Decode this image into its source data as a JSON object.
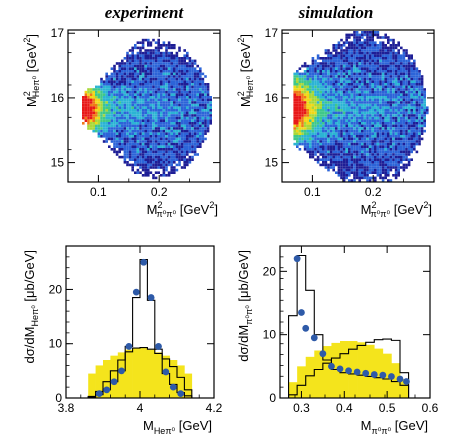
{
  "figure": {
    "titles": {
      "experiment": "experiment",
      "simulation": "simulation"
    }
  },
  "chart_data": [
    {
      "id": "tl",
      "type": "heatmap",
      "title": "experiment",
      "xlabel": {
        "main": "M",
        "sup": "2",
        "sub": "π⁰π⁰",
        "unit": " [GeV",
        "unit_sup": "2",
        "unit_close": "]"
      },
      "ylabel": {
        "main": "M",
        "sup": "2",
        "sub": "Heπ⁰",
        "unit": " [GeV",
        "unit_sup": "2",
        "unit_close": "]"
      },
      "xlim": [
        0.05,
        0.3
      ],
      "ylim": [
        14.7,
        17.05
      ],
      "xticks": [
        0.1,
        0.2
      ],
      "yticks": [
        15,
        16,
        17
      ],
      "shape": {
        "tip_x": 0.07,
        "center_y": 15.85,
        "right_x": 0.285,
        "half_width_y": [
          0.18,
          1.05
        ],
        "peak_width": 0.03
      },
      "colors": [
        "#1e1e96",
        "#2c64d8",
        "#2cb4d4",
        "#40c88a",
        "#a8d838",
        "#f0d818",
        "#f07818",
        "#e81818"
      ]
    },
    {
      "id": "tr",
      "type": "heatmap",
      "title": "simulation",
      "xlabel": {
        "main": "M",
        "sup": "2",
        "sub": "π⁰π⁰",
        "unit": " [GeV",
        "unit_sup": "2",
        "unit_close": "]"
      },
      "ylabel": {
        "main": "M",
        "sup": "2",
        "sub": "Heπ⁰",
        "unit": " [GeV",
        "unit_sup": "2",
        "unit_close": "]"
      },
      "xlim": [
        0.05,
        0.3
      ],
      "ylim": [
        14.7,
        17.05
      ],
      "xticks": [
        0.1,
        0.2
      ],
      "yticks": [
        15,
        16,
        17
      ],
      "shape": {
        "tip_x": 0.065,
        "center_y": 15.85,
        "right_x": 0.287,
        "half_width_y": [
          0.55,
          1.2
        ],
        "peak_width": 0.035
      },
      "colors": [
        "#1e1e96",
        "#2c64d8",
        "#2cb4d4",
        "#40c88a",
        "#a8d838",
        "#f0d818",
        "#f07818",
        "#e81818"
      ]
    },
    {
      "id": "bl",
      "type": "histogram",
      "xlabel": {
        "main": "M",
        "sub": "Heπ⁰",
        "unit": " [GeV]"
      },
      "ylabel": {
        "main": "dσ/dM",
        "sub": "Heπ⁰",
        "unit": " [μb/GeV]"
      },
      "xlim": [
        3.8,
        4.2
      ],
      "ylim": [
        0,
        28
      ],
      "xticks": [
        3.8,
        4,
        4.2
      ],
      "yticks": [
        0,
        10,
        20
      ],
      "edges": [
        3.86,
        3.88,
        3.9,
        3.92,
        3.94,
        3.96,
        3.98,
        4.0,
        4.02,
        4.04,
        4.06,
        4.08,
        4.1,
        4.12,
        4.14
      ],
      "band_yellow": [
        4.5,
        6.0,
        7.0,
        7.8,
        8.4,
        8.9,
        9.2,
        9.2,
        8.9,
        8.4,
        7.8,
        7.0,
        6.0,
        4.5
      ],
      "hist_outer": [
        0.3,
        1.2,
        3.0,
        5.0,
        7.0,
        8.5,
        9.2,
        9.3,
        9.0,
        8.2,
        7.2,
        5.8,
        3.8,
        1.5
      ],
      "hist_inner": [
        0.2,
        0.6,
        1.5,
        3.0,
        5.0,
        9.5,
        18.5,
        25.5,
        18.0,
        9.0,
        4.5,
        2.5,
        1.0,
        0.4
      ],
      "points_x": [
        3.89,
        3.91,
        3.93,
        3.95,
        3.97,
        3.99,
        4.01,
        4.03,
        4.05,
        4.07,
        4.09,
        4.11
      ],
      "points_y": [
        0.8,
        1.5,
        3.0,
        5.0,
        9.5,
        19.5,
        25.0,
        18.5,
        9.5,
        4.8,
        2.0,
        0.8
      ],
      "point_color": "#2e5aa8",
      "band_color": "#f4e41c"
    },
    {
      "id": "br",
      "type": "histogram",
      "xlabel": {
        "main": "M",
        "sub": "π⁰π⁰",
        "unit": " [GeV]"
      },
      "ylabel": {
        "main": "dσ/dM",
        "sub": "π⁰π⁰",
        "unit": " [μb/GeV]"
      },
      "xlim": [
        0.25,
        0.6
      ],
      "ylim": [
        0,
        24
      ],
      "xticks": [
        0.3,
        0.4,
        0.5,
        0.6
      ],
      "yticks": [
        0,
        10,
        20
      ],
      "edges": [
        0.27,
        0.29,
        0.31,
        0.33,
        0.35,
        0.37,
        0.39,
        0.41,
        0.43,
        0.45,
        0.47,
        0.49,
        0.51,
        0.53,
        0.55
      ],
      "band_yellow": [
        2.5,
        5.0,
        6.5,
        7.5,
        8.2,
        8.7,
        9.0,
        9.0,
        8.8,
        8.4,
        7.8,
        7.0,
        5.5,
        3.0
      ],
      "hist_outer": [
        0.5,
        2.0,
        3.5,
        4.5,
        5.5,
        6.3,
        7.0,
        7.7,
        8.3,
        8.8,
        9.2,
        9.3,
        9.1,
        4.0
      ],
      "hist_inner": [
        13.0,
        22.5,
        17.0,
        10.0,
        6.0,
        4.5,
        4.0,
        3.8,
        3.6,
        3.4,
        3.2,
        3.0,
        2.6,
        2.0
      ],
      "points_x": [
        0.29,
        0.3,
        0.31,
        0.33,
        0.35,
        0.37,
        0.39,
        0.41,
        0.43,
        0.45,
        0.47,
        0.49,
        0.51,
        0.53,
        0.545
      ],
      "points_y": [
        22.0,
        13.5,
        11.0,
        9.5,
        7.0,
        5.0,
        4.6,
        4.3,
        4.1,
        3.9,
        3.7,
        3.6,
        3.4,
        3.0,
        2.6
      ],
      "point_color": "#2e5aa8",
      "band_color": "#f4e41c"
    }
  ]
}
